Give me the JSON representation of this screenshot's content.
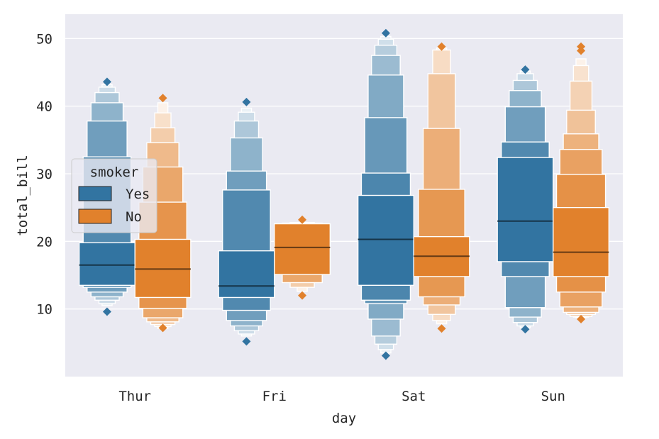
{
  "chart_data": {
    "type": "boxen",
    "xlabel": "day",
    "ylabel": "total_bill",
    "categories": [
      "Thur",
      "Fri",
      "Sat",
      "Sun"
    ],
    "ylim": [
      0.0,
      53.6
    ],
    "yticks": [
      10,
      20,
      30,
      40,
      50
    ],
    "grid": true,
    "legend": {
      "title": "smoker",
      "placement": "center-left"
    },
    "series": [
      {
        "name": "Yes",
        "color": "#3274a1",
        "groups": [
          {
            "day": "Thur",
            "median": 16.5,
            "boxes": [
              [
                13.5,
                19.8
              ],
              [
                13.2,
                32.5
              ],
              [
                12.5,
                37.8
              ],
              [
                11.8,
                40.5
              ],
              [
                11.3,
                42.0
              ],
              [
                10.8,
                42.8
              ],
              [
                10.5,
                43.2
              ]
            ],
            "outliers": [
              43.6,
              9.6
            ]
          },
          {
            "day": "Fri",
            "median": 13.4,
            "boxes": [
              [
                11.7,
                18.6
              ],
              [
                9.8,
                27.6
              ],
              [
                8.3,
                30.4
              ],
              [
                7.5,
                35.3
              ],
              [
                6.8,
                37.8
              ],
              [
                6.3,
                39.1
              ],
              [
                6.0,
                39.7
              ]
            ],
            "outliers": [
              40.6,
              5.2
            ]
          },
          {
            "day": "Sat",
            "median": 20.3,
            "boxes": [
              [
                13.5,
                26.8
              ],
              [
                11.3,
                30.1
              ],
              [
                10.8,
                38.3
              ],
              [
                8.5,
                44.6
              ],
              [
                6.0,
                47.5
              ],
              [
                4.8,
                49.0
              ],
              [
                4.0,
                49.9
              ],
              [
                3.5,
                50.3
              ]
            ],
            "outliers": [
              50.8,
              3.1
            ]
          },
          {
            "day": "Sun",
            "median": 23.0,
            "boxes": [
              [
                17.0,
                32.4
              ],
              [
                14.8,
                34.7
              ],
              [
                10.2,
                39.9
              ],
              [
                8.8,
                42.3
              ],
              [
                8.0,
                43.8
              ],
              [
                7.5,
                44.8
              ],
              [
                7.2,
                45.2
              ]
            ],
            "outliers": [
              45.4,
              7.0
            ]
          }
        ]
      },
      {
        "name": "No",
        "color": "#e1812c",
        "groups": [
          {
            "day": "Thur",
            "median": 15.9,
            "boxes": [
              [
                11.7,
                20.3
              ],
              [
                10.1,
                25.8
              ],
              [
                8.7,
                31.0
              ],
              [
                8.1,
                34.6
              ],
              [
                7.7,
                36.8
              ],
              [
                7.4,
                39.0
              ],
              [
                7.1,
                40.5
              ]
            ],
            "outliers": [
              41.2,
              7.2
            ]
          },
          {
            "day": "Fri",
            "median": 19.1,
            "boxes": [
              [
                15.1,
                22.6
              ],
              [
                13.9,
                22.7
              ],
              [
                13.2,
                22.8
              ],
              [
                12.6,
                22.8
              ]
            ],
            "outliers": [
              23.2,
              12.0
            ]
          },
          {
            "day": "Sat",
            "median": 17.8,
            "boxes": [
              [
                14.8,
                20.7
              ],
              [
                11.8,
                27.7
              ],
              [
                10.6,
                36.7
              ],
              [
                9.2,
                44.8
              ],
              [
                8.3,
                48.3
              ],
              [
                7.8,
                48.6
              ]
            ],
            "outliers": [
              48.8,
              7.1
            ]
          },
          {
            "day": "Sun",
            "median": 18.4,
            "boxes": [
              [
                14.8,
                25.0
              ],
              [
                12.5,
                29.9
              ],
              [
                10.3,
                33.6
              ],
              [
                9.5,
                35.9
              ],
              [
                9.2,
                39.4
              ],
              [
                8.9,
                43.7
              ],
              [
                8.8,
                46.0
              ],
              [
                8.7,
                47.0
              ]
            ],
            "outliers": [
              48.2,
              48.8,
              8.5
            ]
          }
        ]
      }
    ]
  }
}
